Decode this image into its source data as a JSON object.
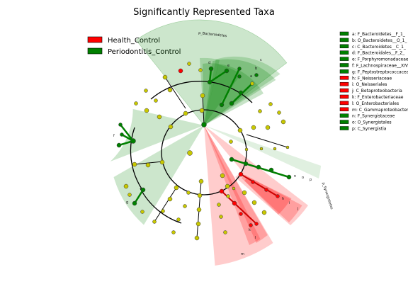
{
  "title": "Significantly Represented Taxa",
  "colors": {
    "health_control": "#ff0000",
    "periodontitis_control": "#008000",
    "neutral_node": "#c8c800",
    "green_sector": "#008000",
    "red_sector": "#ff0000"
  },
  "legend": [
    {
      "label": "Health_Control",
      "color": "#ff0000"
    },
    {
      "label": "Periodontitis_Control",
      "color": "#008000"
    }
  ],
  "right_legend": [
    {
      "label": "a: F_Bacteroidetes__F_1_",
      "color": "#008000"
    },
    {
      "label": "b: O_Bacteroidetes__O_1_",
      "color": "#008000"
    },
    {
      "label": "c: C_Bacteroidetes__C_1_",
      "color": "#008000"
    },
    {
      "label": "d: F_Bacteroidales__F_2_",
      "color": "#008000"
    },
    {
      "label": "e: F_Porphyromonadaceae",
      "color": "#008000"
    },
    {
      "label": "f: F_Lachnospiraceae__XIV",
      "color": "#008000"
    },
    {
      "label": "g: F_Peptostreptococcaceae",
      "color": "#008000"
    },
    {
      "label": "h: F_Neisseriaceae",
      "color": "#ff0000"
    },
    {
      "label": "i: O_Neisseriales",
      "color": "#ff0000"
    },
    {
      "label": "j: C_Betaproteobacteria",
      "color": "#ff0000"
    },
    {
      "label": "k: F_Enterobacteriaceae",
      "color": "#ff0000"
    },
    {
      "label": "l: O_Enterobacteriales",
      "color": "#ff0000"
    },
    {
      "label": "m: C_Gammaproteobacteria",
      "color": "#ff0000"
    },
    {
      "label": "n: F_Synergistaceae",
      "color": "#008000"
    },
    {
      "label": "o: O_Synergistales",
      "color": "#008000"
    },
    {
      "label": "p: C_Synergistia",
      "color": "#008000"
    }
  ],
  "sectors": [
    {
      "label": "p_Bacteroidetes",
      "class": "green",
      "arc_label": "p_Bacteroidetes"
    },
    {
      "label": "c",
      "class": "green"
    },
    {
      "label": "b",
      "class": "green"
    },
    {
      "label": "a",
      "class": "green"
    },
    {
      "label": "d",
      "class": "green"
    },
    {
      "label": "e",
      "class": "green"
    },
    {
      "label": "f",
      "class": "green"
    },
    {
      "label": "g",
      "class": "green"
    },
    {
      "label": "p_Synergistetes",
      "class": "green",
      "arc_label": "p_Synergistetes"
    },
    {
      "label": "p",
      "class": "green"
    },
    {
      "label": "o",
      "class": "green"
    },
    {
      "label": "n",
      "class": "green"
    },
    {
      "label": "j",
      "class": "red"
    },
    {
      "label": "i",
      "class": "red"
    },
    {
      "label": "h",
      "class": "red"
    },
    {
      "label": "m",
      "class": "red"
    },
    {
      "label": "l",
      "class": "red"
    },
    {
      "label": "k",
      "class": "red"
    }
  ]
}
